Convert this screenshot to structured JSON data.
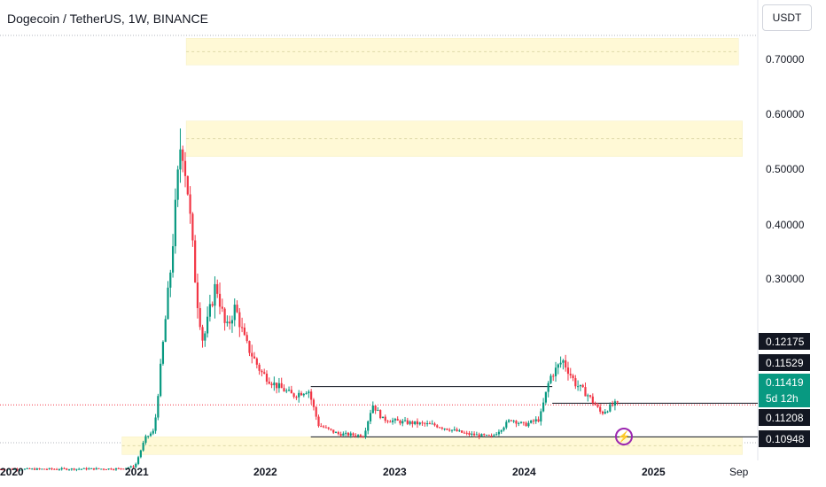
{
  "header": {
    "title": "Dogecoin / TetherUS, 1W, BINANCE",
    "currency_button": "USDT"
  },
  "flash_icon": "lightning-bolt-icon",
  "colors": {
    "up": "#089981",
    "down": "#f23645",
    "zone": "#fff9d6",
    "level": "#131722"
  },
  "price_tags": {
    "tag1": "0.12175",
    "tag2": "0.11529",
    "last_price": "0.11419",
    "countdown": "5d 12h",
    "tag4": "0.11208",
    "tag5": "0.10948"
  },
  "chart_data": {
    "type": "candlestick",
    "title": "Dogecoin / TetherUS, 1W, BINANCE",
    "y_ticks": [
      "0.70000",
      "0.60000",
      "0.50000",
      "0.40000",
      "0.30000"
    ],
    "x_ticks": [
      "2020",
      "2021",
      "2022",
      "2023",
      "2024",
      "2025",
      "Sep"
    ],
    "ylim": [
      0.05,
      0.74
    ],
    "xlim": [
      2019.9,
      2025.8
    ],
    "last_price": 0.11419,
    "anchors": [
      [
        2019.9,
        0.005
      ],
      [
        2020.85,
        0.006
      ],
      [
        2020.97,
        0.01
      ],
      [
        2021.05,
        0.058
      ],
      [
        2021.12,
        0.07
      ],
      [
        2021.25,
        0.35
      ],
      [
        2021.33,
        0.57
      ],
      [
        2021.38,
        0.48
      ],
      [
        2021.45,
        0.3
      ],
      [
        2021.5,
        0.22
      ],
      [
        2021.6,
        0.32
      ],
      [
        2021.68,
        0.24
      ],
      [
        2021.75,
        0.28
      ],
      [
        2021.83,
        0.22
      ],
      [
        2021.95,
        0.17
      ],
      [
        2022.05,
        0.15
      ],
      [
        2022.2,
        0.13
      ],
      [
        2022.32,
        0.14
      ],
      [
        2022.4,
        0.08
      ],
      [
        2022.55,
        0.065
      ],
      [
        2022.75,
        0.062
      ],
      [
        2022.82,
        0.115
      ],
      [
        2022.9,
        0.09
      ],
      [
        2023.05,
        0.085
      ],
      [
        2023.3,
        0.08
      ],
      [
        2023.55,
        0.065
      ],
      [
        2023.75,
        0.06
      ],
      [
        2023.9,
        0.09
      ],
      [
        2024.0,
        0.08
      ],
      [
        2024.12,
        0.09
      ],
      [
        2024.2,
        0.16
      ],
      [
        2024.3,
        0.19
      ],
      [
        2024.4,
        0.15
      ],
      [
        2024.5,
        0.13
      ],
      [
        2024.6,
        0.1
      ],
      [
        2024.7,
        0.115
      ]
    ],
    "zones": [
      {
        "x": [
          2021.35,
          2025.65
        ],
        "y": [
          0.69,
          0.735
        ]
      },
      {
        "x": [
          2021.35,
          2025.68
        ],
        "y": [
          0.535,
          0.595
        ]
      },
      {
        "x": [
          2020.85,
          2025.68
        ],
        "y": [
          0.0,
          0.06
        ]
      }
    ],
    "levels": [
      {
        "x": [
          2022.32,
          2024.2
        ],
        "y": 0.145
      },
      {
        "x": [
          2024.2,
          2025.8
        ],
        "y": 0.117
      },
      {
        "x": [
          2022.32,
          2025.8
        ],
        "y": 0.06
      }
    ]
  }
}
